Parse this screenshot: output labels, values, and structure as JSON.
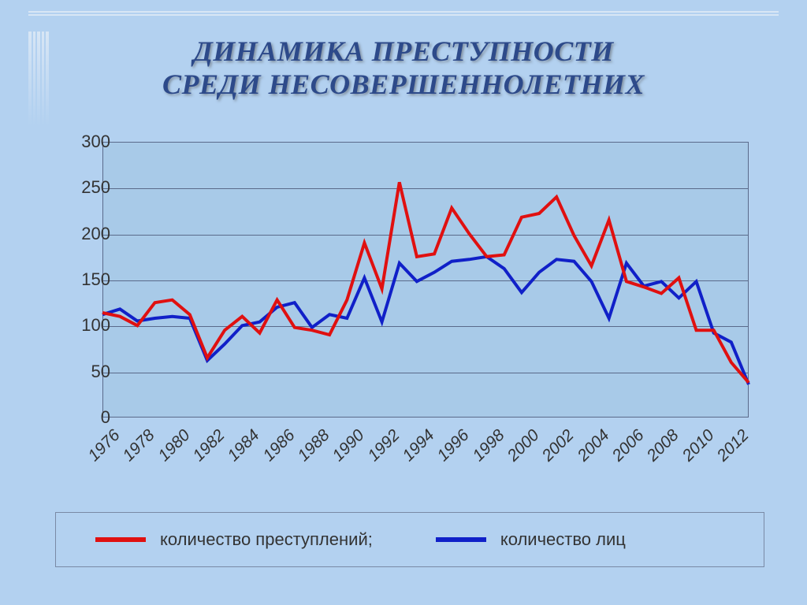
{
  "title": {
    "line1": "ДИНАМИКА ПРЕСТУПНОСТИ",
    "line2": "СРЕДИ НЕСОВЕРШЕННОЛЕТНИХ",
    "color": "#2d4a8a",
    "fontsize": 36,
    "italic": true,
    "bold": true
  },
  "chart": {
    "type": "line",
    "background_color": "#a8cae8",
    "page_background_color": "#b3d1f0",
    "grid_color": "#5a6a8a",
    "border_color": "#5a6a8a",
    "xlim": [
      1976,
      2013
    ],
    "ylim": [
      0,
      300
    ],
    "ytick_step": 50,
    "yticks": [
      0,
      50,
      100,
      150,
      200,
      250,
      300
    ],
    "xticks": [
      1976,
      1978,
      1980,
      1982,
      1984,
      1986,
      1988,
      1990,
      1992,
      1994,
      1996,
      1998,
      2000,
      2002,
      2004,
      2006,
      2008,
      2010,
      2012
    ],
    "xtick_rotation": -45,
    "xtick_italic": true,
    "tick_fontsize": 22,
    "line_width": 4,
    "years": [
      1976,
      1977,
      1978,
      1979,
      1980,
      1981,
      1982,
      1983,
      1984,
      1985,
      1986,
      1987,
      1988,
      1989,
      1990,
      1991,
      1992,
      1993,
      1994,
      1995,
      1996,
      1997,
      1998,
      1999,
      2000,
      2001,
      2002,
      2003,
      2004,
      2005,
      2006,
      2007,
      2008,
      2009,
      2010,
      2011,
      2012,
      2013
    ],
    "series": {
      "crimes": {
        "label": "количество преступлений;",
        "color": "#e01010",
        "values": [
          114,
          110,
          100,
          125,
          128,
          112,
          65,
          95,
          110,
          92,
          128,
          98,
          95,
          90,
          128,
          190,
          140,
          256,
          175,
          178,
          228,
          200,
          175,
          177,
          218,
          222,
          240,
          198,
          165,
          215,
          148,
          142,
          135,
          152,
          95,
          95,
          60,
          38
        ]
      },
      "persons": {
        "label": "количество лиц",
        "color": "#1020c8",
        "values": [
          112,
          118,
          105,
          108,
          110,
          108,
          62,
          80,
          100,
          104,
          120,
          125,
          98,
          112,
          108,
          152,
          104,
          168,
          148,
          158,
          170,
          172,
          175,
          162,
          136,
          158,
          172,
          170,
          148,
          108,
          168,
          143,
          148,
          130,
          148,
          92,
          82,
          36
        ]
      }
    }
  },
  "legend": {
    "border_color": "#7a8aa5",
    "fontsize": 22
  }
}
